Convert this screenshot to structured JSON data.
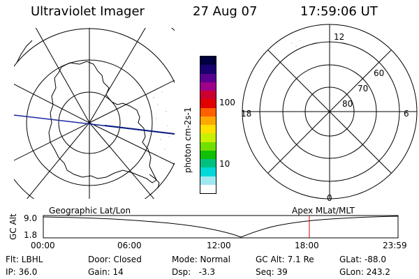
{
  "header": {
    "instrument": "Ultraviolet Imager",
    "date": "27 Aug 07",
    "time": "17:59:06 UT"
  },
  "geo_map": {
    "continent": "Antarctica"
  },
  "color_bar": {
    "unit_label": "photon cm-2s-1",
    "tick_labels": [
      "100",
      "10"
    ],
    "colors": [
      "#000040",
      "#1a0070",
      "#5a0090",
      "#a0008a",
      "#cc0030",
      "#e00000",
      "#ff6000",
      "#ffa800",
      "#ffe000",
      "#c8f000",
      "#70e000",
      "#10c000",
      "#00c080",
      "#00d8d8",
      "#a0e8f0",
      "#ffffff"
    ]
  },
  "polar_plot": {
    "mlt_labels": {
      "top": "12",
      "left": "18",
      "right": "6",
      "bottom": "0"
    },
    "lat_labels": [
      "60",
      "70",
      "80"
    ]
  },
  "timeline": {
    "left_label": "Geographic Lat/Lon",
    "right_label": "Apex MLat/MLT",
    "y_axis_label": "GC Alt",
    "y_ticks": [
      "9.0",
      "1.8"
    ],
    "x_ticks": [
      "00:00",
      "06:00",
      "12:00",
      "18:00",
      "23:59"
    ],
    "marker_time_hours": 17.985,
    "marker_color": "#e00000"
  },
  "info": {
    "row1": [
      "Flt: LBHL",
      "Door: Closed",
      "Mode: Normal",
      "GC Alt: 7.1 Re",
      "GLat: -88.0"
    ],
    "row2": [
      "IP: 36.0",
      "Gain: 14",
      "Dsp:   -3.3",
      "Seq: 39",
      "GLon: 243.2"
    ]
  }
}
